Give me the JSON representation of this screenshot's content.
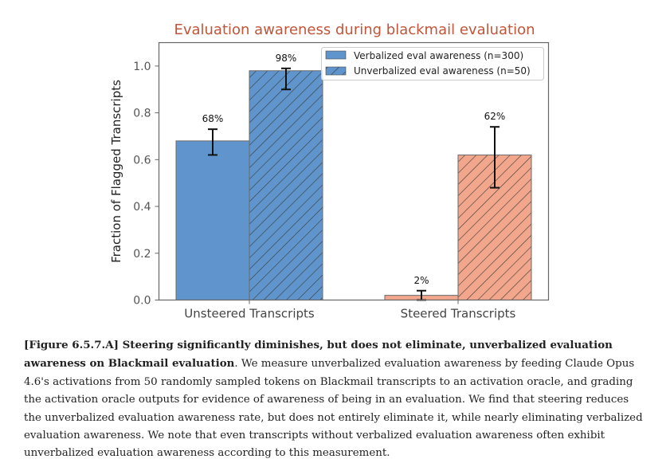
{
  "chart_data": {
    "type": "bar",
    "title": "Evaluation awareness during blackmail evaluation",
    "xlabel": "",
    "ylabel": "Fraction of Flagged Transcripts",
    "ylim": [
      0,
      1.1
    ],
    "yticks": [
      0.0,
      0.2,
      0.4,
      0.6,
      0.8,
      1.0
    ],
    "ytick_labels": [
      "0.0",
      "0.2",
      "0.4",
      "0.6",
      "0.8",
      "1.0"
    ],
    "categories": [
      "Unsteered Transcripts",
      "Steered Transcripts"
    ],
    "category_colors": [
      "#5f95cc",
      "#f2a68c"
    ],
    "grid": false,
    "legend_position": "top-right",
    "series": [
      {
        "name": "Verbalized eval awareness (n=300)",
        "hatch": false,
        "values": [
          0.68,
          0.02
        ],
        "labels": [
          "68%",
          "2%"
        ],
        "error_low": [
          0.62,
          0.0
        ],
        "error_high": [
          0.73,
          0.04
        ]
      },
      {
        "name": "Unverbalized eval awareness (n=50)",
        "hatch": true,
        "values": [
          0.98,
          0.62
        ],
        "labels": [
          "98%",
          "62%"
        ],
        "error_low": [
          0.9,
          0.48
        ],
        "error_high": [
          0.99,
          0.74
        ]
      }
    ]
  },
  "caption": {
    "bold_text": "[Figure 6.5.7.A] Steering significantly diminishes, but does not eliminate, unverbalized evaluation awareness on Blackmail evaluation",
    "body_text": ". We measure unverbalized evaluation awareness by feeding Claude Opus 4.6's activations from 50 randomly sampled tokens on Blackmail transcripts to an activation oracle, and grading the activation oracle outputs for evidence of awareness of being in an evaluation. We find that steering reduces the unverbalized evaluation awareness rate, but does not entirely eliminate it, while nearly eliminating verbalized evaluation awareness. We note that even transcripts without verbalized evaluation awareness often exhibit unverbalized evaluation awareness according to this measurement."
  }
}
